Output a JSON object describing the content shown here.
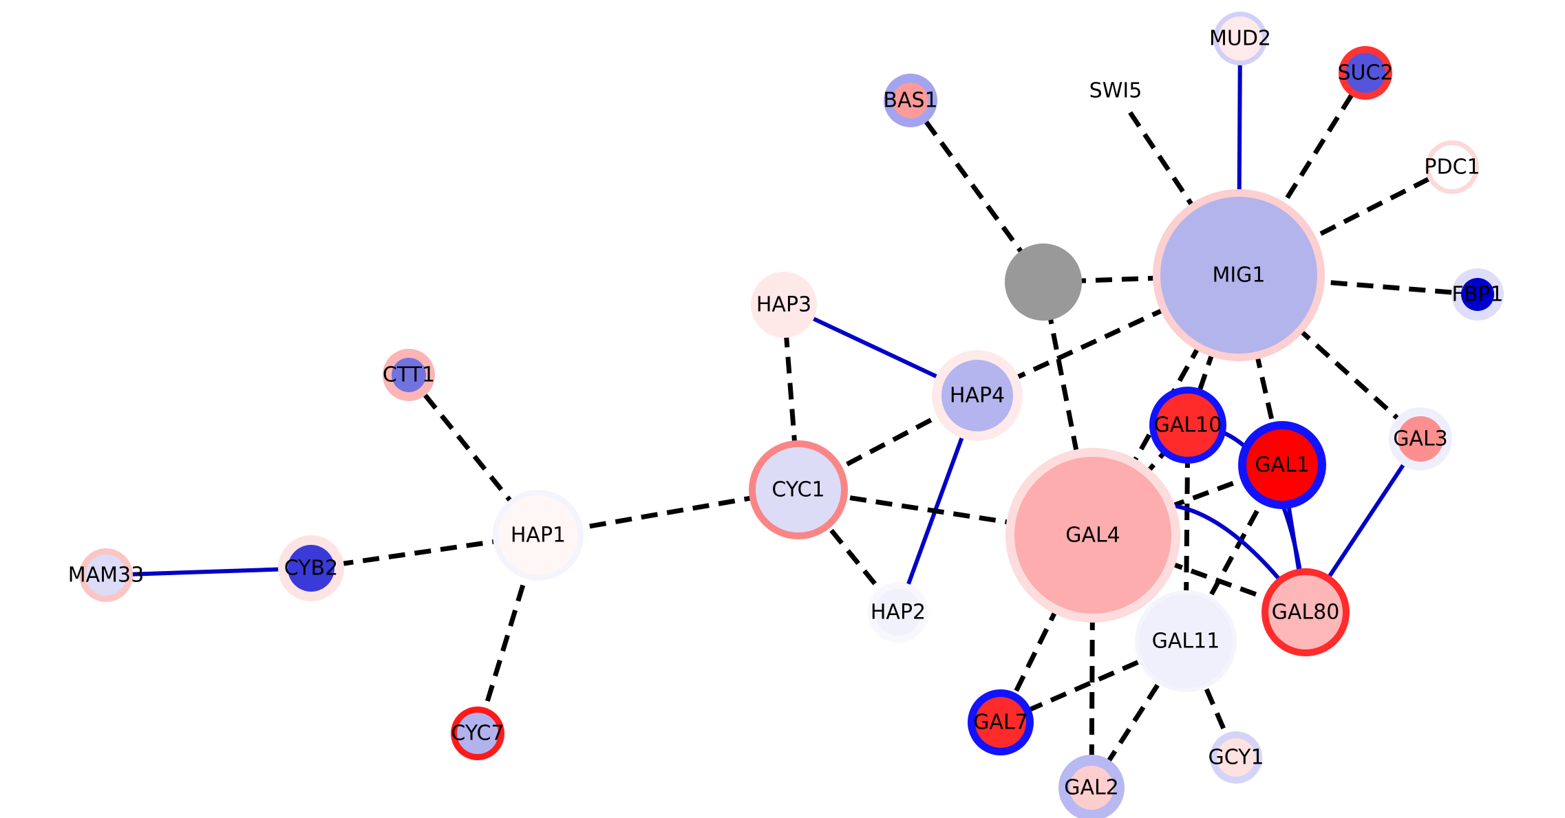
{
  "nodes": [
    {
      "id": "hub",
      "label": "",
      "fill": "#999999",
      "ring": "#999999"
    },
    {
      "id": "MIG1",
      "label": "MIG1",
      "fill": "#b4b4ec",
      "ring": "#fccfd1"
    },
    {
      "id": "GAL4",
      "label": "GAL4",
      "fill": "#fdadae",
      "ring": "#fddcdd"
    },
    {
      "id": "GAL11",
      "label": "GAL11",
      "fill": "#f0f0fc",
      "ring": "#f4f4fd"
    },
    {
      "id": "CYC1",
      "label": "CYC1",
      "fill": "#dcdcf6",
      "ring": "#f98687"
    },
    {
      "id": "HAP4",
      "label": "HAP4",
      "fill": "#b4b4ee",
      "ring": "#feeaea"
    },
    {
      "id": "HAP1",
      "label": "HAP1",
      "fill": "#fff6f6",
      "ring": "#f4f4fd"
    },
    {
      "id": "GAL80",
      "label": "GAL80",
      "fill": "#fdb7b8",
      "ring": "#ff2b2c"
    },
    {
      "id": "GAL1",
      "label": "GAL1",
      "fill": "#ff0000",
      "ring": "#1212ff"
    },
    {
      "id": "GAL10",
      "label": "GAL10",
      "fill": "#ff2a2a",
      "ring": "#1212ff"
    },
    {
      "id": "GAL7",
      "label": "GAL7",
      "fill": "#ff2a2a",
      "ring": "#1212ff"
    },
    {
      "id": "GAL2",
      "label": "GAL2",
      "fill": "#fccece",
      "ring": "#b8b8f2"
    },
    {
      "id": "GAL3",
      "label": "GAL3",
      "fill": "#fd8f8f",
      "ring": "#efeffc"
    },
    {
      "id": "GCY1",
      "label": "GCY1",
      "fill": "#fde2e2",
      "ring": "#d4d4f8"
    },
    {
      "id": "HAP3",
      "label": "HAP3",
      "fill": "#ffe8e8",
      "ring": "#ffe8e8"
    },
    {
      "id": "HAP2",
      "label": "HAP2",
      "fill": "#f1f1fc",
      "ring": "#f7f7fd"
    },
    {
      "id": "CYB2",
      "label": "CYB2",
      "fill": "#3a3ad8",
      "ring": "#fde4e4"
    },
    {
      "id": "CTT1",
      "label": "CTT1",
      "fill": "#7373e0",
      "ring": "#fcb5b5"
    },
    {
      "id": "CYC7",
      "label": "CYC7",
      "fill": "#b2b2ee",
      "ring": "#ff1a1a"
    },
    {
      "id": "MAM33",
      "label": "MAM33",
      "fill": "#dcdcf6",
      "ring": "#fcc5c5"
    },
    {
      "id": "BAS1",
      "label": "BAS1",
      "fill": "#fd9a9a",
      "ring": "#a4a4ee"
    },
    {
      "id": "SWI5",
      "label": "SWI5",
      "fill": "#ffffff",
      "ring": "#f6f6fe"
    },
    {
      "id": "MUD2",
      "label": "MUD2",
      "fill": "#fdeaea",
      "ring": "#d0d0f8"
    },
    {
      "id": "SUC2",
      "label": "SUC2",
      "fill": "#5454dc",
      "ring": "#ff3333"
    },
    {
      "id": "PDC1",
      "label": "PDC1",
      "fill": "#ffffff",
      "ring": "#fdd8d8"
    },
    {
      "id": "FBP1",
      "label": "FBP1",
      "fill": "#0000cc",
      "ring": "#dedefa"
    }
  ],
  "edges": [
    {
      "source": "BAS1",
      "target": "hub",
      "style": "dashed"
    },
    {
      "source": "hub",
      "target": "MIG1",
      "style": "dashed"
    },
    {
      "source": "hub",
      "target": "GAL4",
      "style": "dashed"
    },
    {
      "source": "SWI5",
      "target": "MIG1",
      "style": "dashed"
    },
    {
      "source": "MUD2",
      "target": "MIG1",
      "style": "solid"
    },
    {
      "source": "SUC2",
      "target": "MIG1",
      "style": "dashed"
    },
    {
      "source": "PDC1",
      "target": "MIG1",
      "style": "dashed"
    },
    {
      "source": "FBP1",
      "target": "MIG1",
      "style": "dashed"
    },
    {
      "source": "MIG1",
      "target": "GAL3",
      "style": "dashed"
    },
    {
      "source": "MIG1",
      "target": "GAL1",
      "style": "dashed"
    },
    {
      "source": "MIG1",
      "target": "GAL10",
      "style": "dashed"
    },
    {
      "source": "MIG1",
      "target": "GAL4",
      "style": "dashed"
    },
    {
      "source": "MIG1",
      "target": "HAP4",
      "style": "dashed"
    },
    {
      "source": "HAP3",
      "target": "HAP4",
      "style": "solid"
    },
    {
      "source": "HAP3",
      "target": "CYC1",
      "style": "dashed"
    },
    {
      "source": "HAP4",
      "target": "CYC1",
      "style": "dashed"
    },
    {
      "source": "HAP4",
      "target": "HAP2",
      "style": "solid"
    },
    {
      "source": "CYC1",
      "target": "HAP2",
      "style": "dashed"
    },
    {
      "source": "CYC1",
      "target": "GAL4",
      "style": "dashed"
    },
    {
      "source": "HAP1",
      "target": "CYC1",
      "style": "dashed"
    },
    {
      "source": "CTT1",
      "target": "HAP1",
      "style": "dashed"
    },
    {
      "source": "CYB2",
      "target": "HAP1",
      "style": "dashed"
    },
    {
      "source": "HAP1",
      "target": "CYC7",
      "style": "dashed"
    },
    {
      "source": "MAM33",
      "target": "CYB2",
      "style": "solid"
    },
    {
      "source": "GAL10",
      "target": "GAL4",
      "style": "dashed"
    },
    {
      "source": "GAL10",
      "target": "GAL11",
      "style": "dashed"
    },
    {
      "source": "GAL10",
      "target": "GAL80",
      "style": "solid-curve"
    },
    {
      "source": "GAL1",
      "target": "GAL4",
      "style": "dashed"
    },
    {
      "source": "GAL1",
      "target": "GAL11",
      "style": "dashed"
    },
    {
      "source": "GAL1",
      "target": "GAL80",
      "style": "solid"
    },
    {
      "source": "GAL4",
      "target": "GAL80",
      "style": "dashed"
    },
    {
      "source": "GAL4",
      "target": "GAL80",
      "style": "solid-curve2"
    },
    {
      "source": "GAL3",
      "target": "GAL80",
      "style": "solid"
    },
    {
      "source": "GAL4",
      "target": "GAL7",
      "style": "dashed"
    },
    {
      "source": "GAL4",
      "target": "GAL2",
      "style": "dashed"
    },
    {
      "source": "GAL11",
      "target": "GAL7",
      "style": "dashed"
    },
    {
      "source": "GAL11",
      "target": "GAL2",
      "style": "dashed"
    },
    {
      "source": "GAL11",
      "target": "GCY1",
      "style": "dashed"
    }
  ]
}
